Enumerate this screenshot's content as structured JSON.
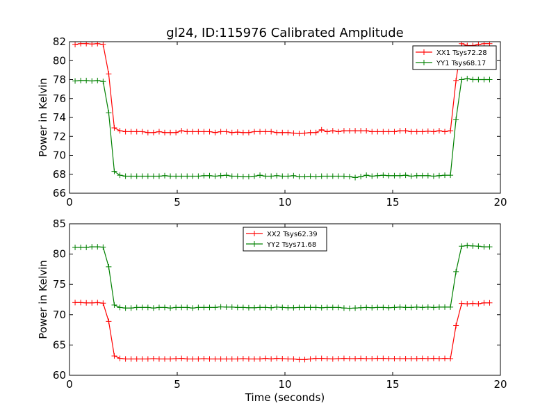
{
  "title": "gl24, ID:115976 Calibrated Amplitude",
  "chart_data": [
    {
      "type": "line",
      "title": "gl24, ID:115976 Calibrated Amplitude",
      "xlabel": "",
      "ylabel": "Power in Kelvin",
      "xlim": [
        0,
        20
      ],
      "ylim": [
        66,
        82
      ],
      "xticks": [
        0,
        5,
        10,
        15,
        20
      ],
      "yticks": [
        66,
        68,
        70,
        72,
        74,
        76,
        78,
        80,
        82
      ],
      "grid": false,
      "legend_position": "top-right",
      "series": [
        {
          "name": "XX1 Tsys72.28",
          "color": "#ff0000",
          "x": [
            0.26,
            0.52,
            0.78,
            1.04,
            1.3,
            1.56,
            1.82,
            2.08,
            2.34,
            2.6,
            2.86,
            3.12,
            3.38,
            3.64,
            3.9,
            4.16,
            4.42,
            4.68,
            4.94,
            5.2,
            5.46,
            5.72,
            5.98,
            6.24,
            6.5,
            6.76,
            7.02,
            7.28,
            7.54,
            7.8,
            8.06,
            8.32,
            8.58,
            8.84,
            9.1,
            9.36,
            9.62,
            9.88,
            10.14,
            10.4,
            10.66,
            10.92,
            11.18,
            11.44,
            11.7,
            11.96,
            12.22,
            12.48,
            12.74,
            13.0,
            13.26,
            13.52,
            13.78,
            14.04,
            14.3,
            14.56,
            14.82,
            15.08,
            15.34,
            15.6,
            15.86,
            16.12,
            16.38,
            16.64,
            16.9,
            17.16,
            17.42,
            17.68,
            17.94,
            18.2,
            18.46,
            18.72,
            18.98,
            19.24,
            19.5
          ],
          "y": [
            81.7,
            81.8,
            81.8,
            81.75,
            81.8,
            81.7,
            78.6,
            72.9,
            72.6,
            72.5,
            72.5,
            72.5,
            72.5,
            72.4,
            72.4,
            72.5,
            72.4,
            72.4,
            72.4,
            72.6,
            72.5,
            72.5,
            72.5,
            72.5,
            72.5,
            72.4,
            72.5,
            72.5,
            72.4,
            72.45,
            72.4,
            72.4,
            72.5,
            72.5,
            72.5,
            72.5,
            72.4,
            72.4,
            72.4,
            72.35,
            72.3,
            72.35,
            72.4,
            72.4,
            72.7,
            72.5,
            72.6,
            72.5,
            72.6,
            72.6,
            72.6,
            72.6,
            72.6,
            72.5,
            72.5,
            72.5,
            72.5,
            72.5,
            72.6,
            72.6,
            72.5,
            72.5,
            72.5,
            72.55,
            72.5,
            72.6,
            72.5,
            72.6,
            77.9,
            81.8,
            81.6,
            81.6,
            81.7,
            81.8,
            81.8
          ]
        },
        {
          "name": "YY1 Tsys68.17",
          "color": "#008000",
          "x": [
            0.26,
            0.52,
            0.78,
            1.04,
            1.3,
            1.56,
            1.82,
            2.08,
            2.34,
            2.6,
            2.86,
            3.12,
            3.38,
            3.64,
            3.9,
            4.16,
            4.42,
            4.68,
            4.94,
            5.2,
            5.46,
            5.72,
            5.98,
            6.24,
            6.5,
            6.76,
            7.02,
            7.28,
            7.54,
            7.8,
            8.06,
            8.32,
            8.58,
            8.84,
            9.1,
            9.36,
            9.62,
            9.88,
            10.14,
            10.4,
            10.66,
            10.92,
            11.18,
            11.44,
            11.7,
            11.96,
            12.22,
            12.48,
            12.74,
            13.0,
            13.26,
            13.52,
            13.78,
            14.04,
            14.3,
            14.56,
            14.82,
            15.08,
            15.34,
            15.6,
            15.86,
            16.12,
            16.38,
            16.64,
            16.9,
            17.16,
            17.42,
            17.68,
            17.94,
            18.2,
            18.46,
            18.72,
            18.98,
            19.24,
            19.5
          ],
          "y": [
            77.85,
            77.9,
            77.9,
            77.85,
            77.9,
            77.8,
            74.5,
            68.3,
            67.9,
            67.8,
            67.8,
            67.8,
            67.8,
            67.8,
            67.8,
            67.8,
            67.85,
            67.8,
            67.8,
            67.8,
            67.8,
            67.8,
            67.8,
            67.85,
            67.85,
            67.8,
            67.85,
            67.9,
            67.8,
            67.8,
            67.75,
            67.75,
            67.8,
            67.9,
            67.8,
            67.8,
            67.85,
            67.8,
            67.8,
            67.85,
            67.75,
            67.75,
            67.8,
            67.75,
            67.8,
            67.8,
            67.8,
            67.8,
            67.8,
            67.75,
            67.65,
            67.75,
            67.9,
            67.8,
            67.85,
            67.9,
            67.85,
            67.85,
            67.85,
            67.9,
            67.8,
            67.85,
            67.85,
            67.85,
            67.8,
            67.85,
            67.9,
            67.9,
            73.8,
            78.0,
            78.1,
            78.0,
            78.0,
            78.0,
            78.0
          ]
        }
      ]
    },
    {
      "type": "line",
      "title": "",
      "xlabel": "Time (seconds)",
      "ylabel": "Power in Kelvin",
      "xlim": [
        0,
        20
      ],
      "ylim": [
        60,
        85
      ],
      "xticks": [
        0,
        5,
        10,
        15,
        20
      ],
      "yticks": [
        60,
        65,
        70,
        75,
        80,
        85
      ],
      "grid": false,
      "legend_position": "top-center",
      "series": [
        {
          "name": "XX2 Tsys62.39",
          "color": "#ff0000",
          "x": [
            0.26,
            0.52,
            0.78,
            1.04,
            1.3,
            1.56,
            1.82,
            2.08,
            2.34,
            2.6,
            2.86,
            3.12,
            3.38,
            3.64,
            3.9,
            4.16,
            4.42,
            4.68,
            4.94,
            5.2,
            5.46,
            5.72,
            5.98,
            6.24,
            6.5,
            6.76,
            7.02,
            7.28,
            7.54,
            7.8,
            8.06,
            8.32,
            8.58,
            8.84,
            9.1,
            9.36,
            9.62,
            9.88,
            10.14,
            10.4,
            10.66,
            10.92,
            11.18,
            11.44,
            11.7,
            11.96,
            12.22,
            12.48,
            12.74,
            13.0,
            13.26,
            13.52,
            13.78,
            14.04,
            14.3,
            14.56,
            14.82,
            15.08,
            15.34,
            15.6,
            15.86,
            16.12,
            16.38,
            16.64,
            16.9,
            17.16,
            17.42,
            17.68,
            17.94,
            18.2,
            18.46,
            18.72,
            18.98,
            19.24,
            19.5
          ],
          "y": [
            72.0,
            72.0,
            71.95,
            71.95,
            72.0,
            71.9,
            68.9,
            63.2,
            62.8,
            62.7,
            62.7,
            62.7,
            62.7,
            62.7,
            62.75,
            62.7,
            62.7,
            62.7,
            62.75,
            62.8,
            62.7,
            62.7,
            62.7,
            62.75,
            62.7,
            62.7,
            62.7,
            62.7,
            62.7,
            62.7,
            62.75,
            62.7,
            62.7,
            62.7,
            62.8,
            62.7,
            62.8,
            62.75,
            62.7,
            62.7,
            62.6,
            62.6,
            62.7,
            62.8,
            62.8,
            62.75,
            62.7,
            62.75,
            62.8,
            62.75,
            62.75,
            62.8,
            62.75,
            62.75,
            62.8,
            62.8,
            62.75,
            62.75,
            62.75,
            62.75,
            62.75,
            62.75,
            62.8,
            62.75,
            62.8,
            62.75,
            62.8,
            62.75,
            68.2,
            71.85,
            71.8,
            71.85,
            71.8,
            71.95,
            71.95
          ]
        },
        {
          "name": "YY2 Tsys71.68",
          "color": "#008000",
          "x": [
            0.26,
            0.52,
            0.78,
            1.04,
            1.3,
            1.56,
            1.82,
            2.08,
            2.34,
            2.6,
            2.86,
            3.12,
            3.38,
            3.64,
            3.9,
            4.16,
            4.42,
            4.68,
            4.94,
            5.2,
            5.46,
            5.72,
            5.98,
            6.24,
            6.5,
            6.76,
            7.02,
            7.28,
            7.54,
            7.8,
            8.06,
            8.32,
            8.58,
            8.84,
            9.1,
            9.36,
            9.62,
            9.88,
            10.14,
            10.4,
            10.66,
            10.92,
            11.18,
            11.44,
            11.7,
            11.96,
            12.22,
            12.48,
            12.74,
            13.0,
            13.26,
            13.52,
            13.78,
            14.04,
            14.3,
            14.56,
            14.82,
            15.08,
            15.34,
            15.6,
            15.86,
            16.12,
            16.38,
            16.64,
            16.9,
            17.16,
            17.42,
            17.68,
            17.94,
            18.2,
            18.46,
            18.72,
            18.98,
            19.24,
            19.5
          ],
          "y": [
            81.1,
            81.1,
            81.1,
            81.2,
            81.2,
            81.15,
            77.9,
            71.6,
            71.2,
            71.1,
            71.1,
            71.2,
            71.2,
            71.2,
            71.1,
            71.2,
            71.2,
            71.1,
            71.2,
            71.2,
            71.2,
            71.1,
            71.2,
            71.2,
            71.2,
            71.2,
            71.3,
            71.25,
            71.25,
            71.2,
            71.2,
            71.15,
            71.15,
            71.2,
            71.2,
            71.15,
            71.25,
            71.2,
            71.15,
            71.15,
            71.2,
            71.2,
            71.2,
            71.2,
            71.15,
            71.2,
            71.2,
            71.2,
            71.1,
            71.05,
            71.1,
            71.15,
            71.2,
            71.15,
            71.2,
            71.2,
            71.15,
            71.2,
            71.25,
            71.2,
            71.2,
            71.25,
            71.2,
            71.25,
            71.2,
            71.25,
            71.25,
            71.25,
            77.1,
            81.3,
            81.4,
            81.35,
            81.3,
            81.2,
            81.2
          ]
        }
      ]
    }
  ]
}
